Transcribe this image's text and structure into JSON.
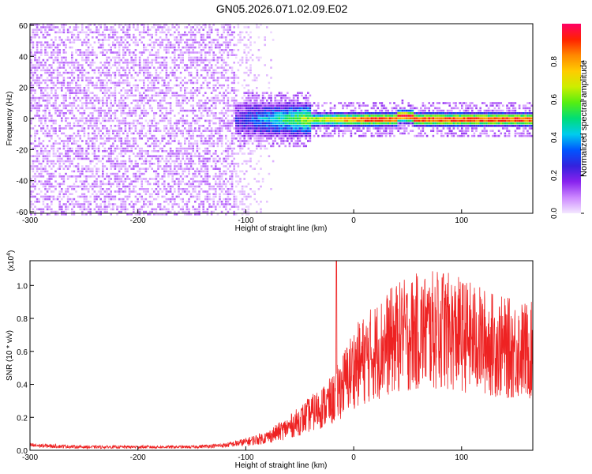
{
  "page": {
    "title": "GN05.2026.071.02.09.E02"
  },
  "chart_data": [
    {
      "type": "heatmap",
      "xlabel": "Height of straight line (km)",
      "ylabel": "Frequency (Hz)",
      "xlim": [
        -300,
        166
      ],
      "ylim": [
        -61,
        61
      ],
      "xticks": [
        -300,
        -200,
        -100,
        0,
        100
      ],
      "xtick_labels": [
        "-300",
        "-200",
        "-100",
        "0",
        "100"
      ],
      "yticks": [
        -60,
        -40,
        -20,
        0,
        20,
        40,
        60
      ],
      "ytick_labels": [
        "-60",
        "-40",
        "-20",
        "0",
        "20",
        "40",
        "60"
      ],
      "colorbar": {
        "label": "Normalized spectral amplitude",
        "range": [
          0,
          1
        ],
        "ticks": [
          0.0,
          0.2,
          0.4,
          0.6,
          0.8
        ],
        "tick_labels": [
          "0.0",
          "0.2",
          "0.4",
          "0.6",
          "0.8"
        ],
        "colormap": [
          "#f4e8ff",
          "#cc88ff",
          "#8822ee",
          "#3322dd",
          "#0055ff",
          "#00ccee",
          "#00dd77",
          "#55ee11",
          "#ccee00",
          "#ffcc00",
          "#ff8800",
          "#ff2200",
          "#ff0066"
        ]
      },
      "regions": [
        {
          "x_range": [
            -300,
            -110
          ],
          "freq_range": [
            -61,
            61
          ],
          "amplitude": 0.05
        },
        {
          "x_range": [
            -110,
            -75
          ],
          "freq_range": [
            -61,
            61
          ],
          "amplitude": 0.02
        },
        {
          "x_range": [
            -110,
            166
          ],
          "center_freq": 0,
          "band_halfwidth": [
            12,
            5
          ],
          "peak_amplitude": 0.9
        }
      ],
      "grid": false
    },
    {
      "type": "line",
      "xlabel": "Height of straight line (km)",
      "ylabel": "SNR (10 * v/v)",
      "y_multiplier": "(x10",
      "y_multiplier_exp": "4",
      "y_multiplier_close": ")",
      "xlim": [
        -300,
        166
      ],
      "ylim": [
        0,
        1.15
      ],
      "xticks": [
        -300,
        -200,
        -100,
        0,
        100
      ],
      "xtick_labels": [
        "-300",
        "-200",
        "-100",
        "0",
        "100"
      ],
      "yticks": [
        0,
        0.2,
        0.4,
        0.6,
        0.8,
        1.0
      ],
      "ytick_labels": [
        "0.0",
        "0.2",
        "0.4",
        "0.6",
        "0.8",
        "1.0"
      ],
      "color": "#ee2222",
      "series": [
        {
          "x": [
            -300,
            -250,
            -200,
            -150,
            -120,
            -100,
            -80,
            -60,
            -40,
            -20,
            -15,
            -10,
            0,
            20,
            40,
            60,
            80,
            100,
            120,
            140,
            166
          ],
          "y": [
            0.03,
            0.02,
            0.02,
            0.02,
            0.03,
            0.05,
            0.08,
            0.14,
            0.22,
            0.3,
            0.35,
            0.4,
            0.5,
            0.6,
            0.68,
            0.72,
            0.73,
            0.7,
            0.66,
            0.62,
            0.6
          ],
          "spikes": [
            {
              "x": -16,
              "y": 1.15
            },
            {
              "x": 83,
              "y": 1.07
            },
            {
              "x": 78,
              "y": 1.03
            },
            {
              "x": 45,
              "y": 0.92
            }
          ]
        }
      ],
      "grid": false
    }
  ]
}
